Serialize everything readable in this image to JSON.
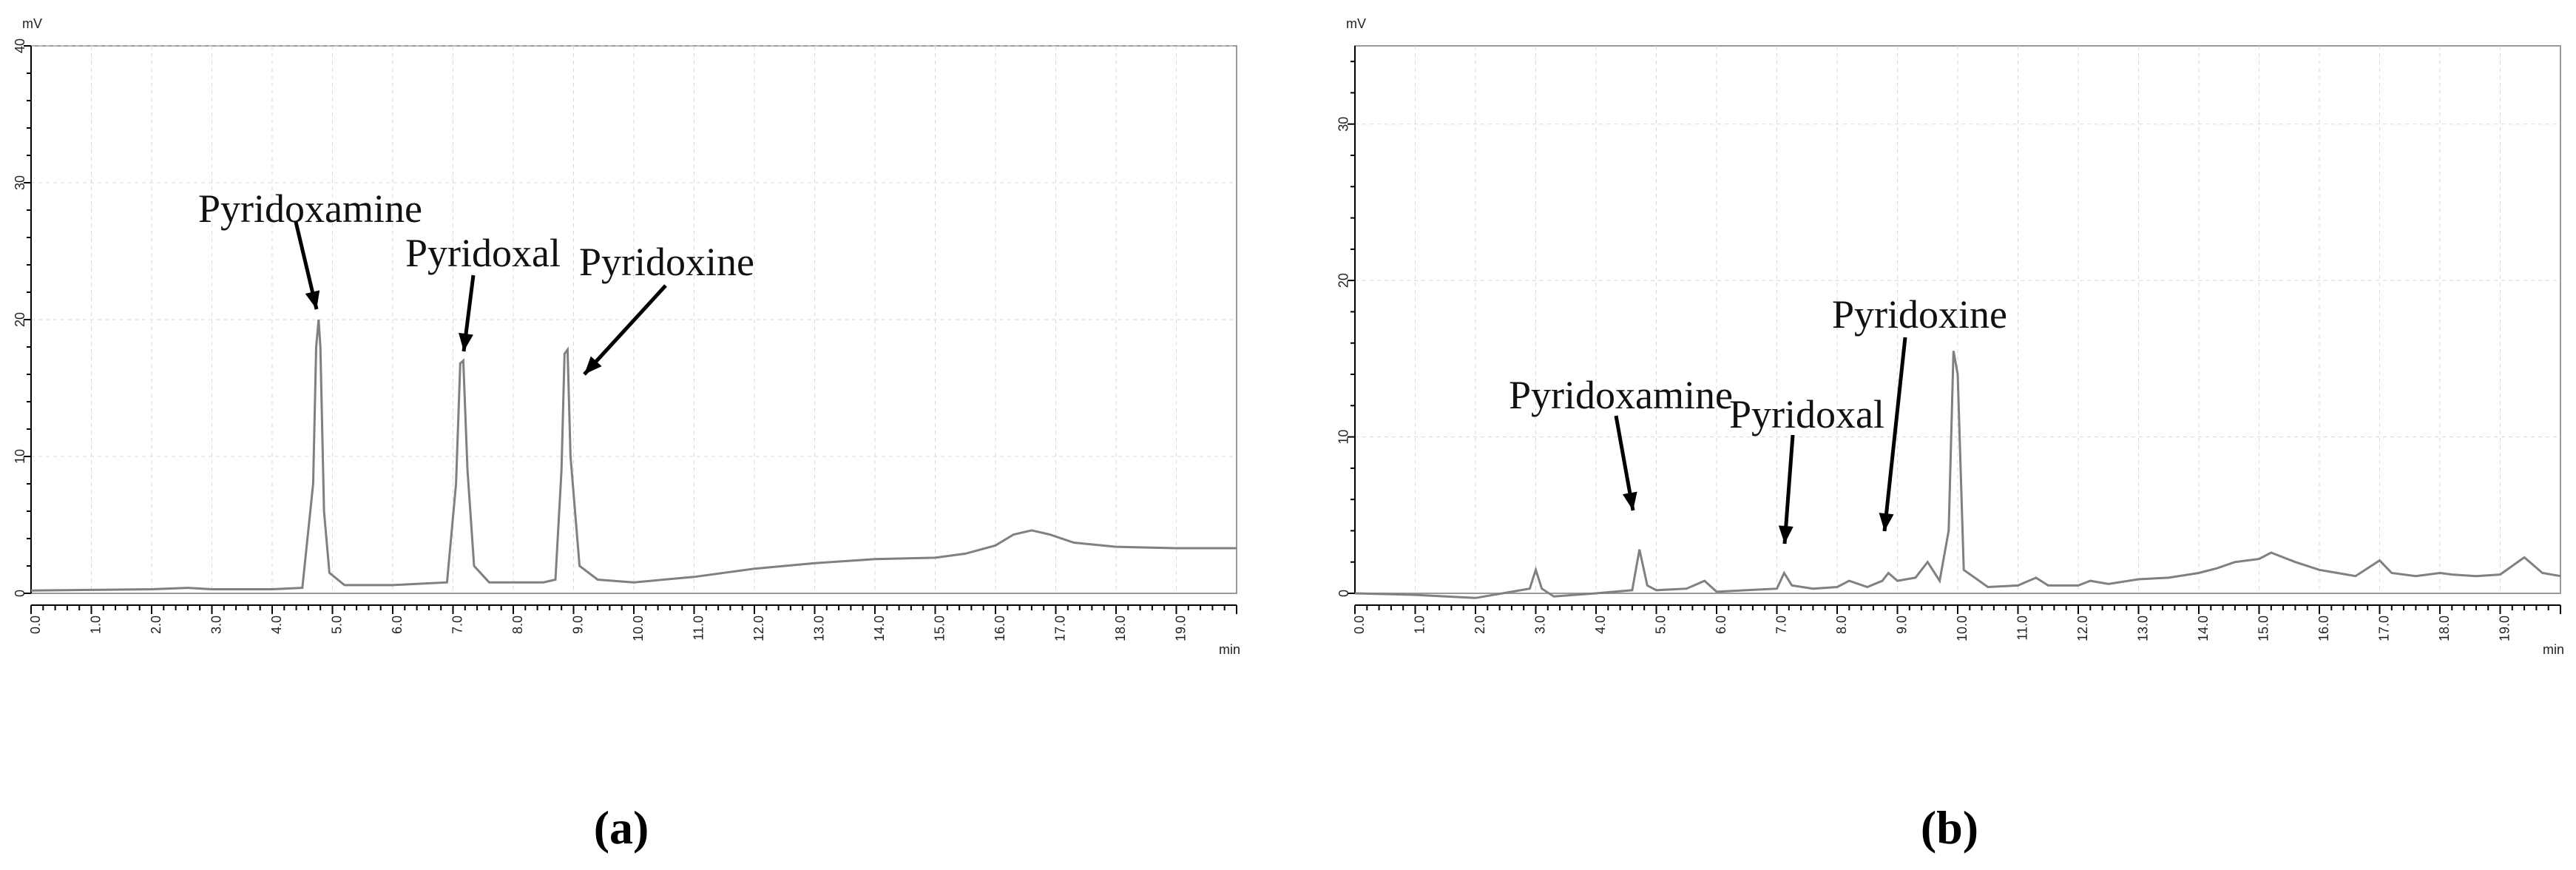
{
  "chart_data": [
    {
      "id": "a",
      "type": "line",
      "panel_label": "(a)",
      "x_unit_label": "min",
      "y_unit_label": "mV",
      "xlim": [
        0,
        20
      ],
      "ylim": [
        0,
        40
      ],
      "x_ticks": [
        0,
        1,
        2,
        3,
        4,
        5,
        6,
        7,
        8,
        9,
        10,
        11,
        12,
        13,
        14,
        15,
        16,
        17,
        18,
        19
      ],
      "x_tick_labels": [
        "0.0",
        "1.0",
        "2.0",
        "3.0",
        "4.0",
        "5.0",
        "6.0",
        "7.0",
        "8.0",
        "9.0",
        "10.0",
        "11.0",
        "12.0",
        "13.0",
        "14.0",
        "15.0",
        "16.0",
        "17.0",
        "18.0",
        "19.0"
      ],
      "y_ticks": [
        0,
        10,
        20,
        30,
        40
      ],
      "y_tick_labels": [
        "0",
        "10",
        "20",
        "30",
        "40"
      ],
      "grid": true,
      "series": [
        {
          "color": "#808080",
          "x": [
            0,
            1,
            2,
            2.6,
            3,
            4,
            4.5,
            4.68,
            4.73,
            4.77,
            4.8,
            4.86,
            4.95,
            5.2,
            6,
            6.9,
            7.05,
            7.12,
            7.17,
            7.24,
            7.35,
            7.6,
            8.5,
            8.7,
            8.8,
            8.85,
            8.9,
            8.95,
            9.1,
            9.4,
            10,
            11,
            12,
            13,
            14,
            15,
            15.5,
            16,
            16.3,
            16.6,
            16.9,
            17.3,
            18,
            19,
            20
          ],
          "y": [
            0.2,
            0.25,
            0.3,
            0.4,
            0.3,
            0.3,
            0.4,
            8,
            18,
            20,
            18,
            6,
            1.5,
            0.6,
            0.6,
            0.8,
            8,
            16.8,
            17,
            9,
            2,
            0.8,
            0.8,
            1,
            9,
            17.5,
            17.8,
            10,
            2,
            1,
            0.8,
            1.2,
            1.8,
            2.2,
            2.5,
            2.6,
            2.9,
            3.5,
            4.3,
            4.6,
            4.3,
            3.7,
            3.4,
            3.3,
            3.3
          ]
        }
      ],
      "annotations": [
        {
          "text": "Pyridoxamine",
          "x": 4.77,
          "y": 20
        },
        {
          "text": "Pyridoxal",
          "x": 7.17,
          "y": 17
        },
        {
          "text": "Pyridoxine",
          "x": 9.0,
          "y": 15.5
        }
      ]
    },
    {
      "id": "b",
      "type": "line",
      "panel_label": "(b)",
      "x_unit_label": "min",
      "y_unit_label": "mV",
      "xlim": [
        0,
        20
      ],
      "ylim": [
        0,
        35
      ],
      "x_ticks": [
        0,
        1,
        2,
        3,
        4,
        5,
        6,
        7,
        8,
        9,
        10,
        11,
        12,
        13,
        14,
        15,
        16,
        17,
        18,
        19
      ],
      "x_tick_labels": [
        "0.0",
        "1.0",
        "2.0",
        "3.0",
        "4.0",
        "5.0",
        "6.0",
        "7.0",
        "8.0",
        "9.0",
        "10.0",
        "11.0",
        "12.0",
        "13.0",
        "14.0",
        "15.0",
        "16.0",
        "17.0",
        "18.0",
        "19.0"
      ],
      "y_ticks": [
        0,
        10,
        20,
        30
      ],
      "y_tick_labels": [
        "0",
        "10",
        "20",
        "30"
      ],
      "grid": true,
      "series": [
        {
          "color": "#808080",
          "x": [
            0,
            1,
            2,
            2.9,
            3.0,
            3.1,
            3.3,
            4,
            4.6,
            4.72,
            4.85,
            5.0,
            5.5,
            5.8,
            6.0,
            6.5,
            7.0,
            7.12,
            7.25,
            7.6,
            8.0,
            8.2,
            8.5,
            8.75,
            8.85,
            9.0,
            9.3,
            9.5,
            9.7,
            9.85,
            9.93,
            10.0,
            10.1,
            10.5,
            11,
            11.3,
            11.5,
            12,
            12.2,
            12.5,
            13,
            13.5,
            14,
            14.3,
            14.6,
            15,
            15.2,
            15.6,
            16,
            16.3,
            16.6,
            17,
            17.2,
            17.6,
            18,
            18.2,
            18.6,
            19,
            19.4,
            19.7,
            20
          ],
          "y": [
            0,
            -0.1,
            -0.3,
            0.3,
            1.5,
            0.3,
            -0.2,
            0,
            0.2,
            2.8,
            0.5,
            0.2,
            0.3,
            0.8,
            0.1,
            0.2,
            0.3,
            1.3,
            0.5,
            0.3,
            0.4,
            0.8,
            0.4,
            0.8,
            1.3,
            0.8,
            1,
            2,
            0.8,
            4,
            15.5,
            14,
            1.5,
            0.4,
            0.5,
            1,
            0.5,
            0.5,
            0.8,
            0.6,
            0.9,
            1,
            1.3,
            1.6,
            2,
            2.2,
            2.6,
            2,
            1.5,
            1.3,
            1.1,
            2.1,
            1.3,
            1.1,
            1.3,
            1.2,
            1.1,
            1.2,
            2.3,
            1.3,
            1.1
          ]
        }
      ],
      "annotations": [
        {
          "text": "Pyridoxamine",
          "x": 4.72,
          "y": 2.8
        },
        {
          "text": "Pyridoxal",
          "x": 7.12,
          "y": 1.3
        },
        {
          "text": "Pyridoxine",
          "x": 8.85,
          "y": 1.3
        }
      ]
    }
  ]
}
